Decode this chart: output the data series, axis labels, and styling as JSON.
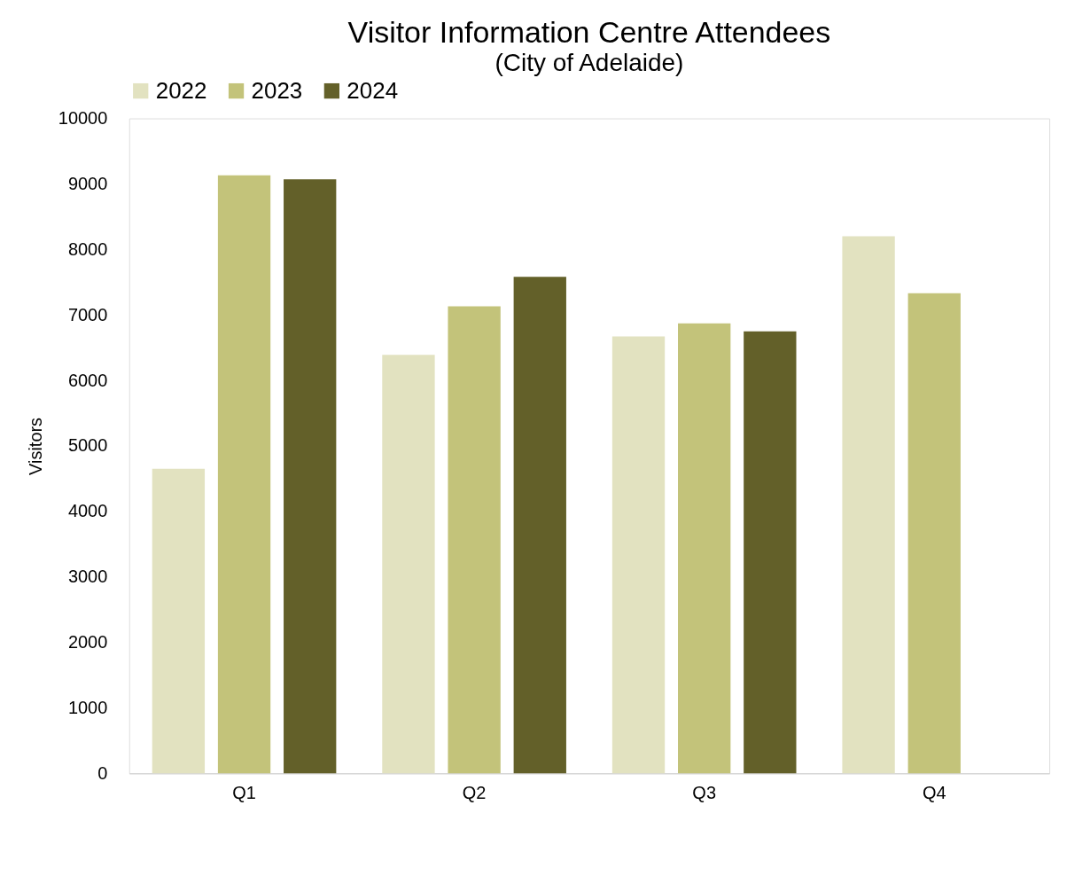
{
  "chart_data": {
    "type": "bar",
    "title": "Visitor Information Centre Attendees",
    "subtitle": "(City of Adelaide)",
    "ylabel": "Visitors",
    "categories": [
      "Q1",
      "Q2",
      "Q3",
      "Q4"
    ],
    "series": [
      {
        "name": "2022",
        "color": "#e2e2c0",
        "values": [
          4650,
          6390,
          6670,
          8200
        ]
      },
      {
        "name": "2023",
        "color": "#c3c37a",
        "values": [
          9130,
          7130,
          6870,
          7330
        ]
      },
      {
        "name": "2024",
        "color": "#636029",
        "values": [
          9070,
          7580,
          6750,
          null
        ]
      }
    ],
    "ylim": [
      0,
      10000
    ],
    "yticks": [
      0,
      1000,
      2000,
      3000,
      4000,
      5000,
      6000,
      7000,
      8000,
      9000,
      10000
    ],
    "grid": false,
    "legend": "top"
  }
}
